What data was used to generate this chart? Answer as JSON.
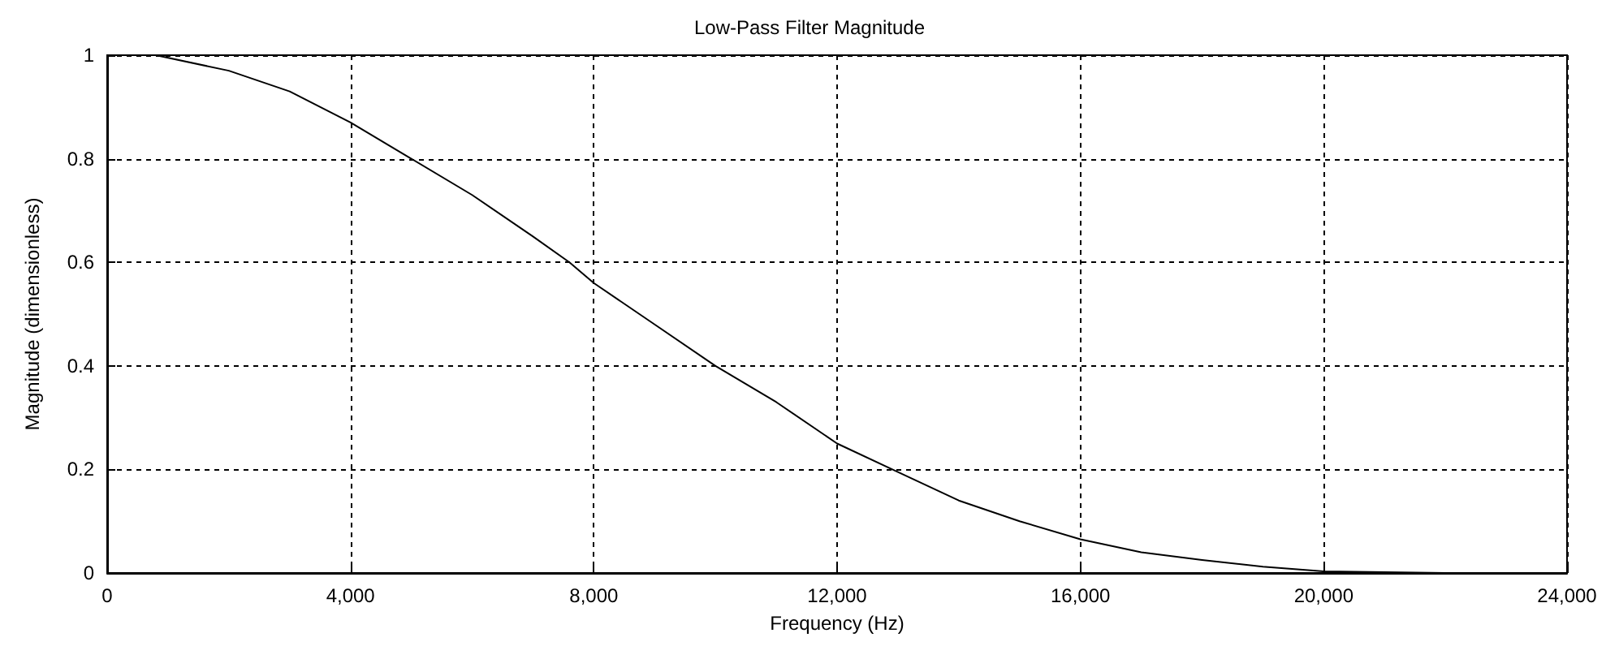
{
  "chart_data": {
    "type": "line",
    "title": "Low-Pass Filter Magnitude",
    "xlabel": "Frequency (Hz)",
    "ylabel": "Magnitude (dimensionless)",
    "series": [
      {
        "color": "#000000",
        "x": [
          800,
          2000,
          3000,
          4000,
          5000,
          6000,
          7000,
          7600,
          8000,
          9000,
          10000,
          11000,
          12000,
          13000,
          14000,
          15000,
          16000,
          17000,
          18000,
          19000,
          20000,
          22000,
          24000
        ],
        "values": [
          1.0,
          0.97,
          0.93,
          0.87,
          0.8,
          0.73,
          0.65,
          0.6,
          0.56,
          0.48,
          0.4,
          0.33,
          0.25,
          0.195,
          0.14,
          0.1,
          0.065,
          0.04,
          0.025,
          0.012,
          0.003,
          0.0,
          0.0
        ]
      }
    ],
    "xlim": [
      0,
      24000
    ],
    "xticks": [
      0,
      {
        "value": 4000,
        "label": "4,000"
      },
      {
        "value": 8000,
        "label": "8,000"
      },
      {
        "value": 12000,
        "label": "12,000"
      },
      {
        "value": 16000,
        "label": "16,000"
      },
      {
        "value": 20000,
        "label": "20,000"
      },
      {
        "value": 24000,
        "label": "24,000"
      }
    ],
    "ylim": [
      0,
      1
    ],
    "yticks": [
      0,
      0.2,
      0.4,
      0.6,
      0.8,
      1
    ],
    "grid": true,
    "marker": "none",
    "line_style": "solid"
  }
}
